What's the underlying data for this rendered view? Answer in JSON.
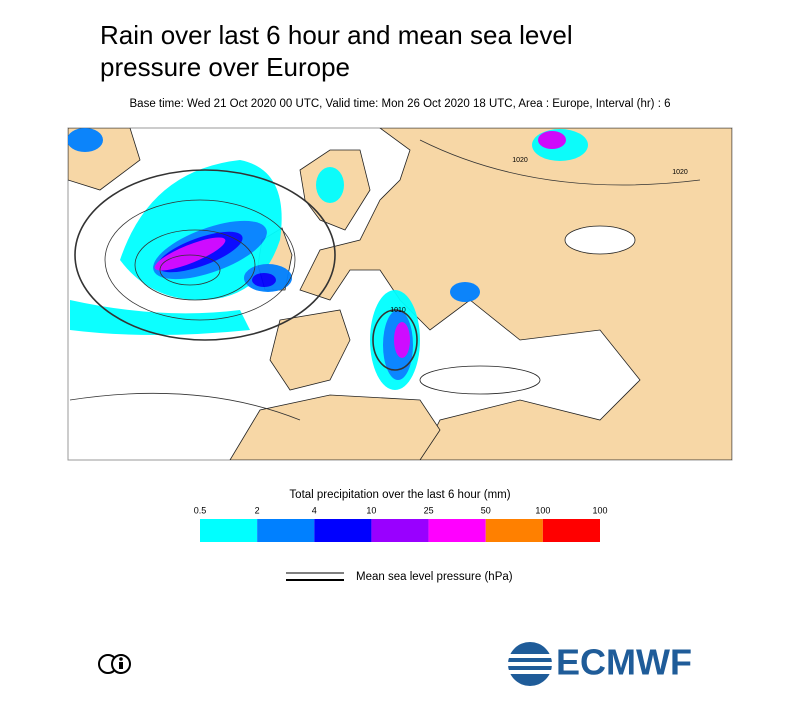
{
  "header": {
    "title_lines": [
      "Rain over last 6 hour and mean sea level",
      "pressure over Europe"
    ],
    "subtitle": "Base time: Wed 21 Oct 2020 00 UTC, Valid time: Mon 26 Oct 2020 18 UTC, Area : Europe, Interval (hr) : 6"
  },
  "map": {
    "isobar_labels": [
      "1010",
      "1020",
      "1020"
    ]
  },
  "precip_legend": {
    "title": "Total precipitation over the last 6 hour (mm)",
    "ticks": [
      "0.5",
      "2",
      "4",
      "10",
      "25",
      "50",
      "100",
      "100"
    ],
    "colors": [
      "#00ffff",
      "#0080ff",
      "#0000ff",
      "#9900ff",
      "#ff00ff",
      "#ff8000",
      "#ff0000"
    ]
  },
  "pressure_legend": {
    "label": "Mean sea level pressure (hPa)"
  },
  "logo": {
    "text": "ECMWF"
  }
}
